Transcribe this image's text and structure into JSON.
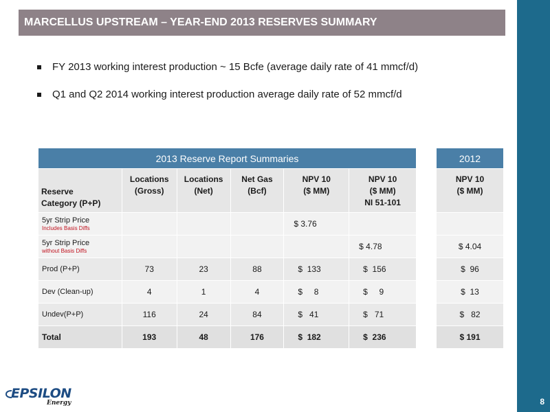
{
  "title": "MARCELLUS UPSTREAM – YEAR-END 2013 RESERVES SUMMARY",
  "bullets": [
    "FY 2013 working interest production ~ 15 Bcfe (average daily rate of 41 mmcf/d)",
    "Q1 and Q2 2014 working interest production average daily rate of 52 mmcf/d"
  ],
  "main_table": {
    "header": "2013 Reserve Report Summaries",
    "columns": [
      "Reserve Category (P+P)",
      "Locations (Gross)",
      "Locations (Net)",
      "Net Gas (Bcf)",
      "NPV 10 ($ MM)",
      "NPV 10 ($ MM) NI 51-101"
    ],
    "columns_lines": [
      [
        "Reserve",
        "Category (P+P)"
      ],
      [
        "Locations",
        "(Gross)"
      ],
      [
        "Locations",
        "(Net)"
      ],
      [
        "Net Gas",
        "(Bcf)"
      ],
      [
        "NPV 10",
        "($ MM)"
      ],
      [
        "NPV 10",
        "($ MM)",
        "NI 51-101"
      ]
    ],
    "rows": [
      {
        "label": "5yr Strip Price",
        "sublabel": "Includes Basis Diffs",
        "gross": "",
        "net": "",
        "gas": "",
        "npv": "$ 3.76",
        "npv_ni": ""
      },
      {
        "label": "5yr Strip Price",
        "sublabel": "without Basis Diffs",
        "gross": "",
        "net": "",
        "gas": "",
        "npv": "",
        "npv_ni": "$ 4.78"
      },
      {
        "label": "Prod (P+P)",
        "sublabel": "",
        "gross": "73",
        "net": "23",
        "gas": "88",
        "npv": "$  133",
        "npv_ni": "$  156"
      },
      {
        "label": "Dev (Clean-up)",
        "sublabel": "",
        "gross": "4",
        "net": "1",
        "gas": "4",
        "npv": "$     8",
        "npv_ni": "$     9"
      },
      {
        "label": "Undev(P+P)",
        "sublabel": "",
        "gross": "116",
        "net": "24",
        "gas": "84",
        "npv": "$   41",
        "npv_ni": "$   71"
      }
    ],
    "total": {
      "label": "Total",
      "gross": "193",
      "net": "48",
      "gas": "176",
      "npv": "$  182",
      "npv_ni": "$  236"
    }
  },
  "side_table": {
    "header": "2012",
    "column_lines": [
      "NPV 10",
      "($ MM)"
    ],
    "rows": [
      "",
      "$ 4.04",
      "$  96",
      "$  13",
      "$   82"
    ],
    "total": "$ 191"
  },
  "logo": {
    "word": "EPSILON",
    "sub": "Energy"
  },
  "page_number": "8",
  "colors": {
    "title_bar": "#8e8288",
    "right_bar": "#1d6a8c",
    "table_header": "#4a7fa7",
    "basis_note": "#c0121e",
    "logo": "#1d4c83"
  }
}
